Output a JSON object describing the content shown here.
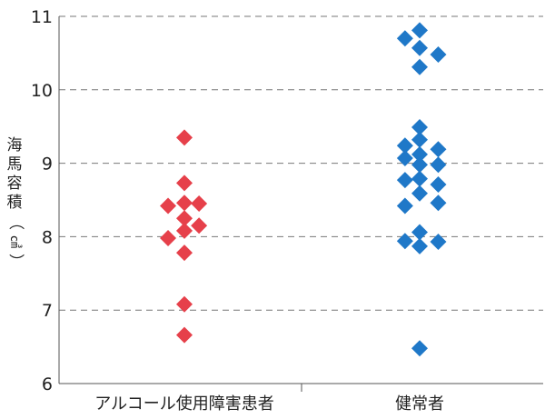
{
  "chart_data": {
    "type": "scatter",
    "title": "",
    "ylabel": "海馬容積（㎤）",
    "ylabel_parts": [
      "海",
      "馬",
      "容",
      "積",
      "（",
      "㎤",
      "）"
    ],
    "ylim": [
      6,
      11
    ],
    "yticks": [
      "6",
      "7",
      "8",
      "9",
      "10",
      "11"
    ],
    "grid": "horizontal-dashed",
    "categories": [
      "アルコール使用障害患者",
      "健常者"
    ],
    "series": [
      {
        "category": "アルコール使用障害患者",
        "color": "#e6404a",
        "marker": "diamond",
        "points": [
          {
            "x": 0.0,
            "y": 9.35
          },
          {
            "x": 0.0,
            "y": 8.73
          },
          {
            "x": -0.29,
            "y": 8.42
          },
          {
            "x": 0.0,
            "y": 8.46
          },
          {
            "x": 0.26,
            "y": 8.45
          },
          {
            "x": 0.0,
            "y": 8.25
          },
          {
            "x": 0.26,
            "y": 8.15
          },
          {
            "x": 0.0,
            "y": 8.08
          },
          {
            "x": -0.29,
            "y": 7.98
          },
          {
            "x": 0.0,
            "y": 7.78
          },
          {
            "x": 0.0,
            "y": 7.08
          },
          {
            "x": 0.0,
            "y": 6.66
          }
        ]
      },
      {
        "category": "健常者",
        "color": "#1f78c8",
        "marker": "diamond",
        "points": [
          {
            "x": 0.0,
            "y": 10.81
          },
          {
            "x": -0.26,
            "y": 10.7
          },
          {
            "x": 0.0,
            "y": 10.57
          },
          {
            "x": 0.33,
            "y": 10.48
          },
          {
            "x": 0.0,
            "y": 10.31
          },
          {
            "x": 0.0,
            "y": 9.49
          },
          {
            "x": 0.0,
            "y": 9.32
          },
          {
            "x": -0.26,
            "y": 9.24
          },
          {
            "x": 0.33,
            "y": 9.19
          },
          {
            "x": -0.26,
            "y": 9.07
          },
          {
            "x": 0.0,
            "y": 9.12
          },
          {
            "x": 0.0,
            "y": 8.98
          },
          {
            "x": 0.33,
            "y": 8.98
          },
          {
            "x": -0.26,
            "y": 8.77
          },
          {
            "x": 0.0,
            "y": 8.79
          },
          {
            "x": 0.33,
            "y": 8.71
          },
          {
            "x": 0.0,
            "y": 8.59
          },
          {
            "x": -0.26,
            "y": 8.42
          },
          {
            "x": 0.33,
            "y": 8.46
          },
          {
            "x": 0.0,
            "y": 8.06
          },
          {
            "x": -0.26,
            "y": 7.94
          },
          {
            "x": 0.33,
            "y": 7.93
          },
          {
            "x": 0.0,
            "y": 7.87
          },
          {
            "x": 0.0,
            "y": 6.48
          }
        ]
      }
    ]
  }
}
